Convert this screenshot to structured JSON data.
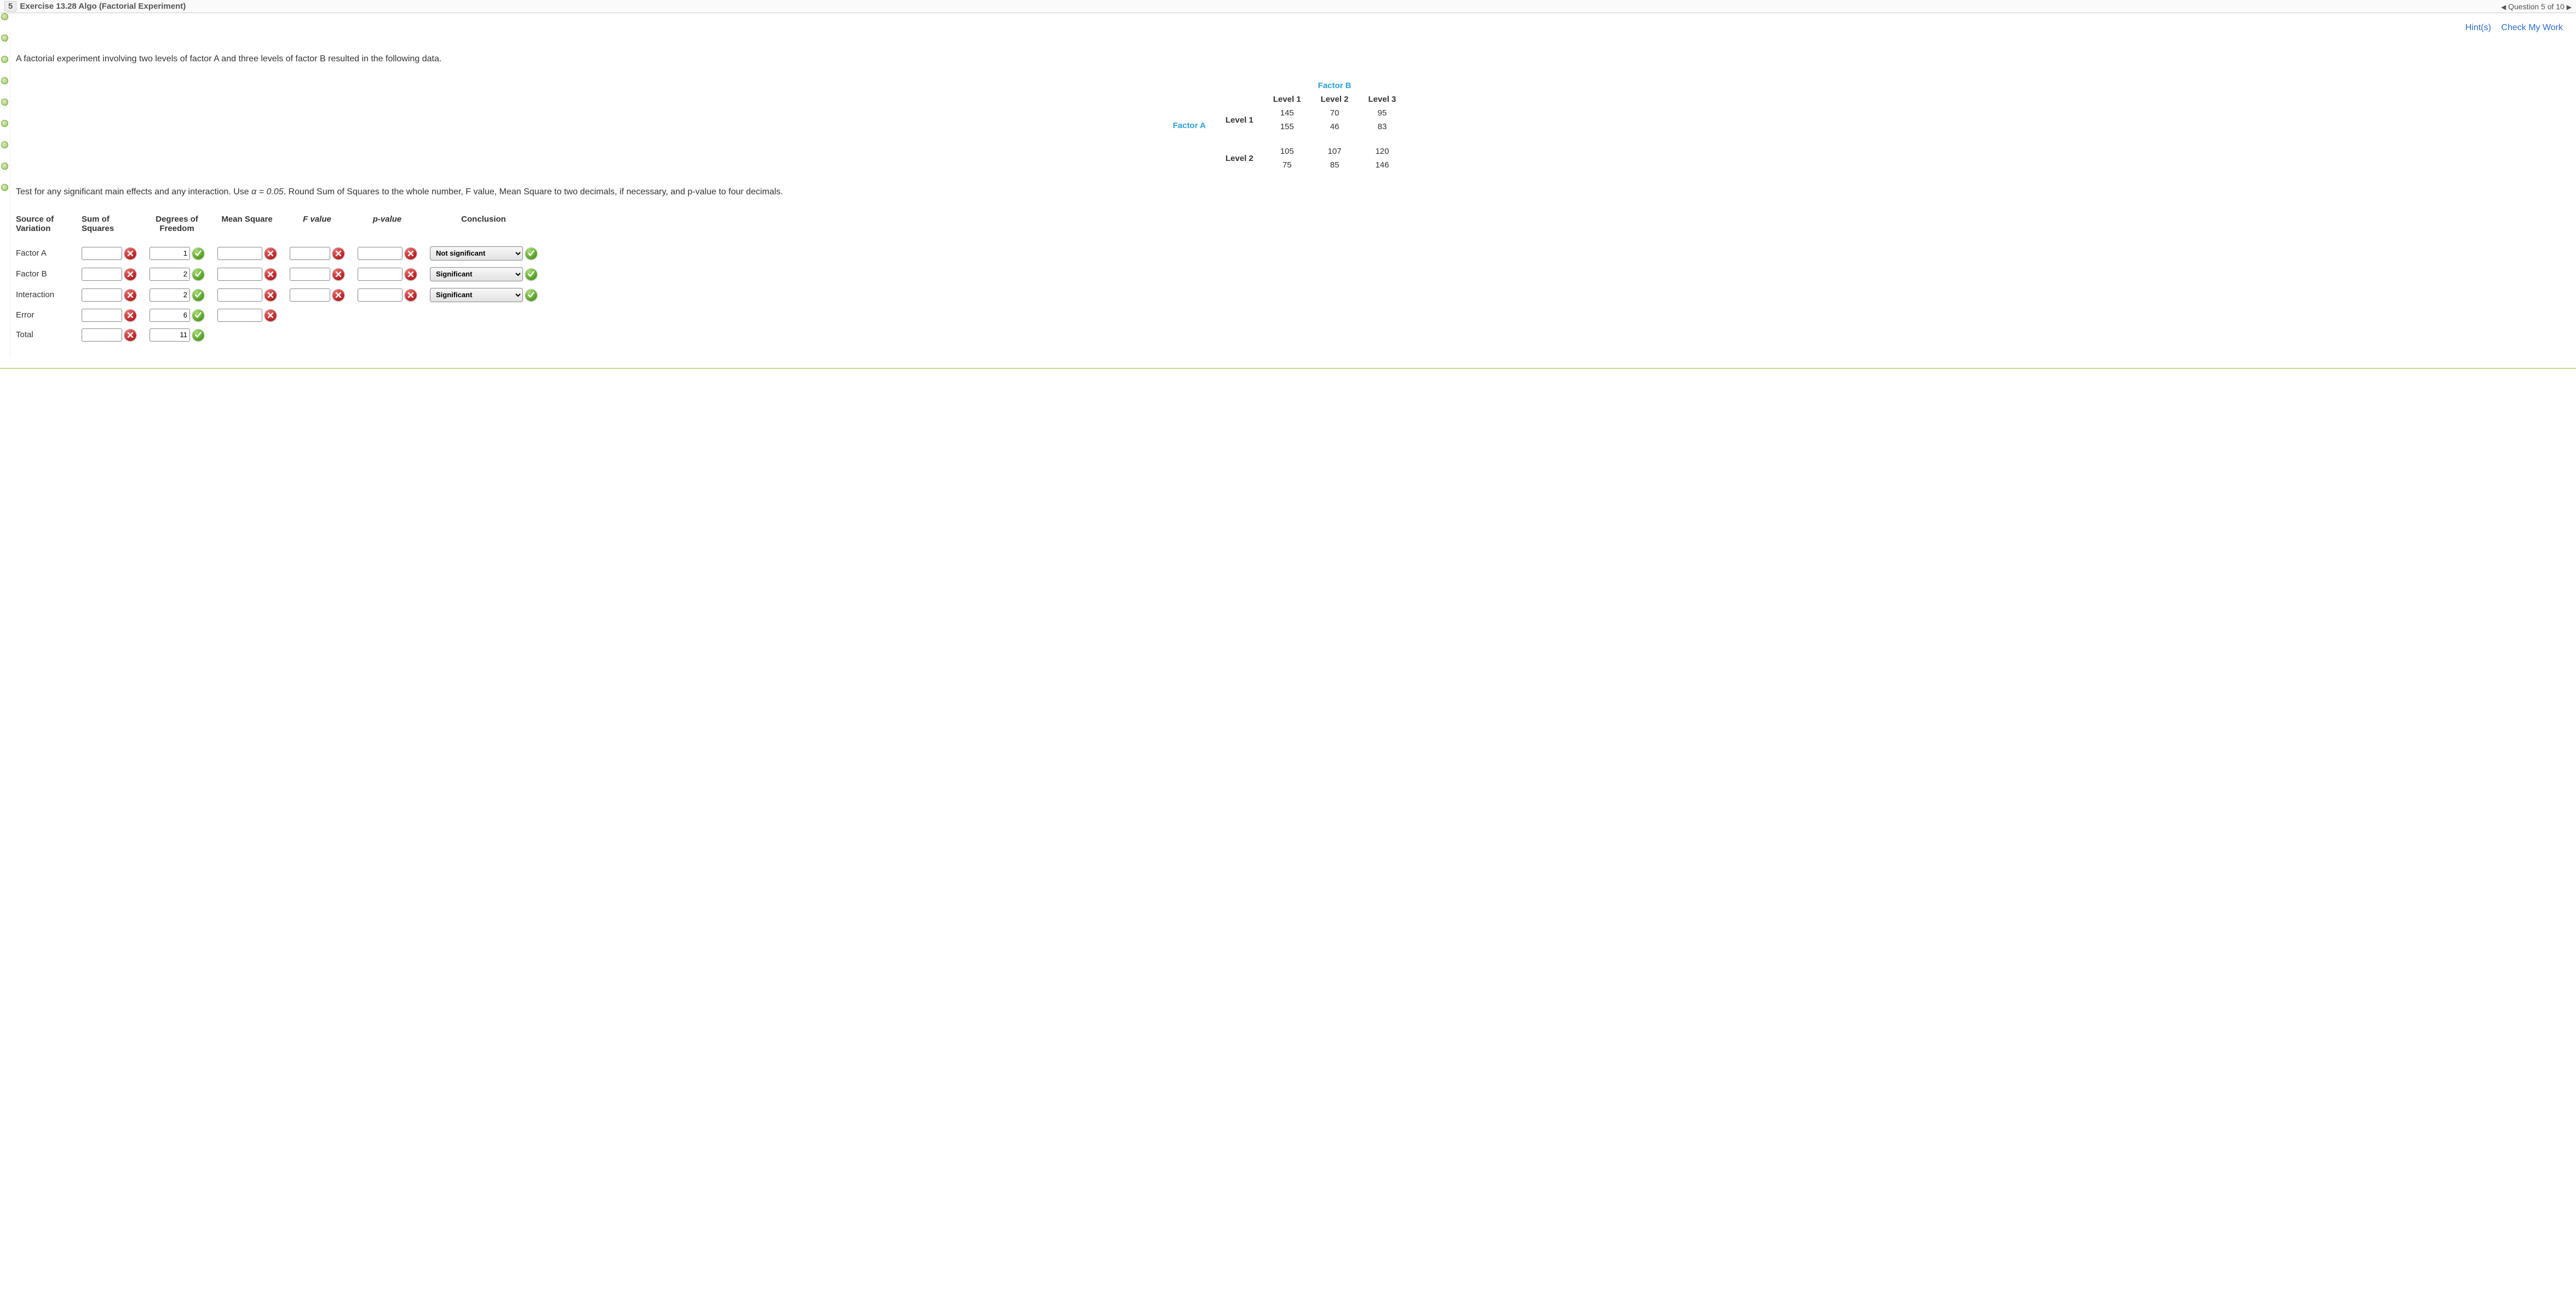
{
  "header": {
    "question_index": "5",
    "title": "Exercise 13.28 Algo (Factorial Experiment)",
    "nav_text": "Question 5 of 10",
    "nav_left_arrow": "◀",
    "nav_right_arrow": "▶"
  },
  "links": {
    "hint": "Hint(s)",
    "check": "Check My Work"
  },
  "problem": {
    "intro": "A factorial experiment involving two levels of factor A and three levels of factor B resulted in the following data.",
    "factor_a_label": "Factor A",
    "factor_b_label": "Factor B",
    "col_heads": [
      "Level 1",
      "Level 2",
      "Level 3"
    ],
    "row_heads": [
      "Level 1",
      "Level 2"
    ],
    "data": {
      "a1": {
        "r1": [
          "145",
          "70",
          "95"
        ],
        "r2": [
          "155",
          "46",
          "83"
        ]
      },
      "a2": {
        "r1": [
          "105",
          "107",
          "120"
        ],
        "r2": [
          "75",
          "85",
          "146"
        ]
      }
    },
    "instructions_pre": "Test for any significant main effects and any interaction. Use ",
    "alpha_expr": "α = 0.05",
    "instructions_post": ". Round Sum of Squares to the whole number, F value, Mean Square to two decimals, if necessary, and p-value to four decimals."
  },
  "anova": {
    "headers": {
      "source": "Source of\nVariation",
      "ss": "Sum of\nSquares",
      "df": "Degrees of\nFreedom",
      "ms": "Mean Square",
      "f": "F value",
      "p": "p-value",
      "concl": "Conclusion"
    },
    "rows": [
      {
        "label": "Factor A",
        "ss": "",
        "ss_ok": false,
        "df": "1",
        "df_ok": true,
        "ms": "",
        "ms_ok": false,
        "f": "",
        "f_ok": false,
        "p": "",
        "p_ok": false,
        "concl": "Not significant",
        "concl_ok": true
      },
      {
        "label": "Factor B",
        "ss": "",
        "ss_ok": false,
        "df": "2",
        "df_ok": true,
        "ms": "",
        "ms_ok": false,
        "f": "",
        "f_ok": false,
        "p": "",
        "p_ok": false,
        "concl": "Significant",
        "concl_ok": true
      },
      {
        "label": "Interaction",
        "ss": "",
        "ss_ok": false,
        "df": "2",
        "df_ok": true,
        "ms": "",
        "ms_ok": false,
        "f": "",
        "f_ok": false,
        "p": "",
        "p_ok": false,
        "concl": "Significant",
        "concl_ok": true
      },
      {
        "label": "Error",
        "ss": "",
        "ss_ok": false,
        "df": "6",
        "df_ok": true,
        "ms": "",
        "ms_ok": false
      },
      {
        "label": "Total",
        "ss": "",
        "ss_ok": false,
        "df": "11",
        "df_ok": true
      }
    ],
    "conclusion_options": [
      "Not significant",
      "Significant"
    ]
  },
  "colors": {
    "link": "#2a6dcc",
    "accent": "#2aa0d8",
    "correct": "#4f9b1e",
    "incorrect": "#b61d1d"
  },
  "rail_dot_count": 9
}
